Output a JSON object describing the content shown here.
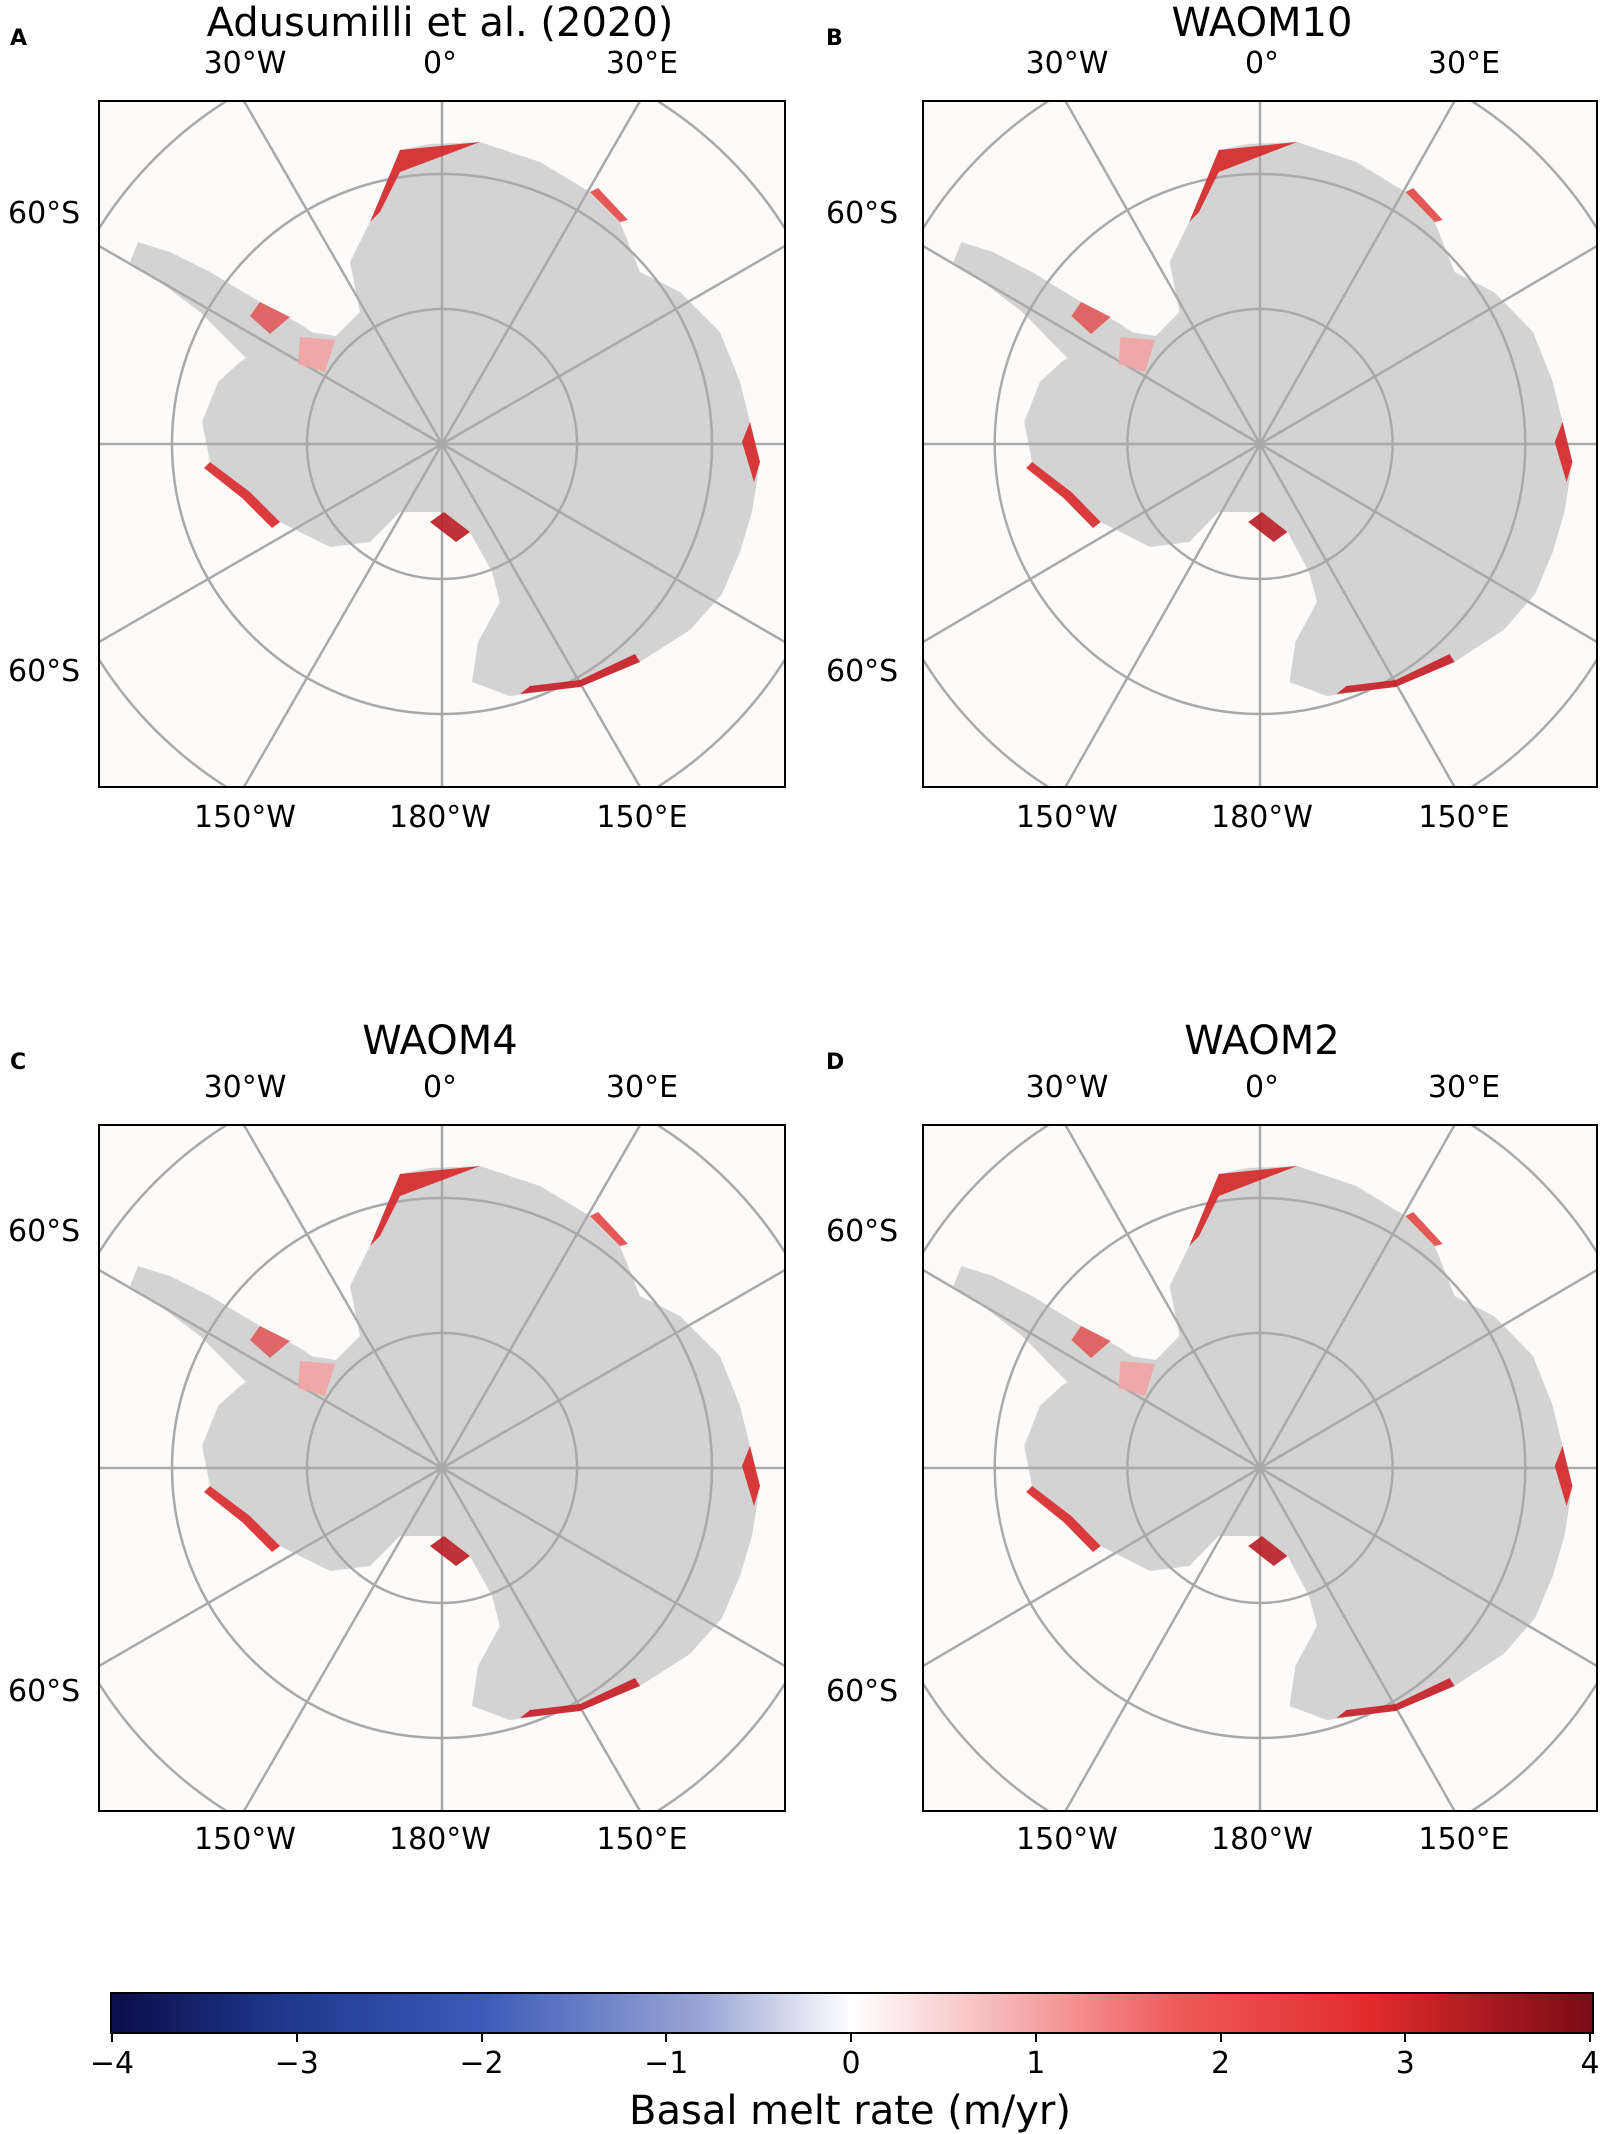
{
  "panels": [
    {
      "letter": "A",
      "title": "Adusumilli et al. (2020)"
    },
    {
      "letter": "B",
      "title": "WAOM10"
    },
    {
      "letter": "C",
      "title": "WAOM4"
    },
    {
      "letter": "D",
      "title": "WAOM2"
    }
  ],
  "axis_labels": {
    "top_left": "30°W",
    "top_center": "0°",
    "top_right": "30°E",
    "left_upper": "60°S",
    "left_lower": "60°S",
    "bottom_left": "150°W",
    "bottom_center": "180°W",
    "bottom_right": "150°E"
  },
  "colorbar": {
    "label": "Basal melt rate (m/yr)",
    "ticks": [
      "−4",
      "−3",
      "−2",
      "−1",
      "0",
      "1",
      "2",
      "3",
      "4"
    ],
    "range": [
      -4,
      4
    ],
    "colors": {
      "min": "#0b0d4a",
      "mid": "#ffffff",
      "max": "#7a0b15"
    }
  },
  "colors": {
    "land": "#d3d3d3",
    "grid": "#a9a9a9",
    "melt": "#d62728",
    "freeze": "#3b5bb8"
  }
}
